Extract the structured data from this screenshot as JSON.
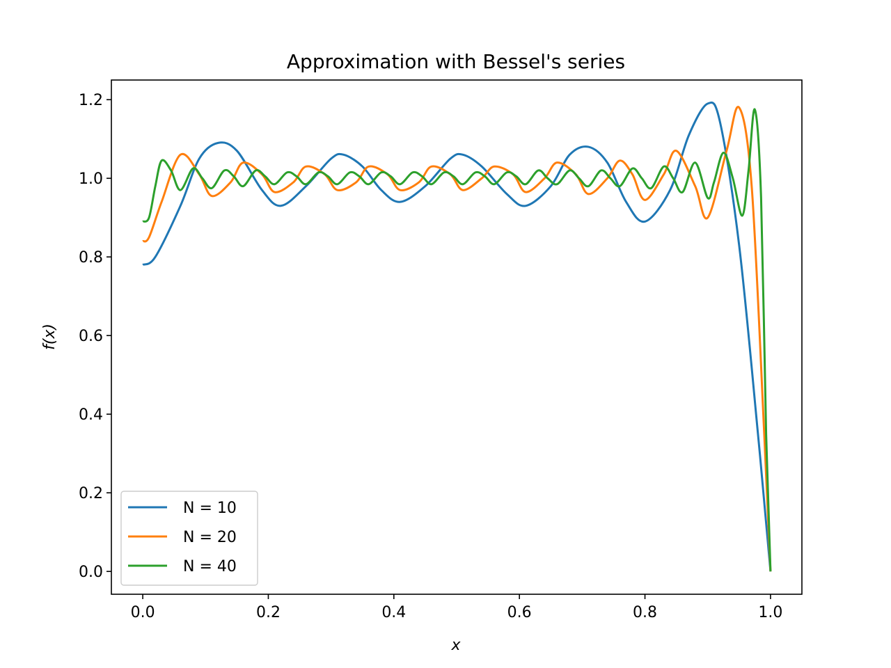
{
  "chart_data": {
    "type": "line",
    "title": "Approximation with Bessel's series",
    "xlabel": "x",
    "ylabel": "f(x)",
    "xlim": [
      -0.05,
      1.05
    ],
    "ylim": [
      -0.058,
      1.25
    ],
    "xticks": [
      0.0,
      0.2,
      0.4,
      0.6,
      0.8,
      1.0
    ],
    "xtick_labels": [
      "0.0",
      "0.2",
      "0.4",
      "0.6",
      "0.8",
      "1.0"
    ],
    "yticks": [
      0.0,
      0.2,
      0.4,
      0.6,
      0.8,
      1.0,
      1.2
    ],
    "ytick_labels": [
      "0.0",
      "0.2",
      "0.4",
      "0.6",
      "0.8",
      "1.0",
      "1.2"
    ],
    "grid": false,
    "legend_position": "lower-left",
    "series": [
      {
        "name": "N = 10",
        "color": "#1f77b4",
        "x": [
          0.0,
          0.02,
          0.06,
          0.09,
          0.12,
          0.15,
          0.19,
          0.22,
          0.26,
          0.3,
          0.32,
          0.35,
          0.38,
          0.41,
          0.45,
          0.49,
          0.51,
          0.54,
          0.58,
          0.61,
          0.65,
          0.68,
          0.71,
          0.74,
          0.77,
          0.8,
          0.84,
          0.87,
          0.9,
          0.92,
          0.95,
          0.98,
          1.0
        ],
        "y": [
          0.78,
          0.8,
          0.93,
          1.05,
          1.09,
          1.07,
          0.97,
          0.93,
          0.98,
          1.05,
          1.06,
          1.03,
          0.97,
          0.94,
          0.98,
          1.05,
          1.06,
          1.03,
          0.96,
          0.93,
          0.98,
          1.06,
          1.08,
          1.04,
          0.94,
          0.89,
          0.97,
          1.11,
          1.19,
          1.14,
          0.83,
          0.35,
          0.0
        ]
      },
      {
        "name": "N = 20",
        "color": "#ff7f0e",
        "x": [
          0.0,
          0.01,
          0.03,
          0.06,
          0.09,
          0.11,
          0.14,
          0.16,
          0.19,
          0.21,
          0.24,
          0.26,
          0.29,
          0.31,
          0.34,
          0.36,
          0.39,
          0.41,
          0.44,
          0.46,
          0.49,
          0.51,
          0.54,
          0.56,
          0.59,
          0.61,
          0.64,
          0.66,
          0.69,
          0.71,
          0.74,
          0.76,
          0.78,
          0.8,
          0.83,
          0.85,
          0.88,
          0.9,
          0.93,
          0.95,
          0.97,
          0.99,
          1.0
        ],
        "y": [
          0.84,
          0.85,
          0.94,
          1.06,
          1.01,
          0.955,
          0.99,
          1.04,
          1.01,
          0.965,
          0.99,
          1.03,
          1.01,
          0.97,
          0.99,
          1.03,
          1.01,
          0.97,
          0.99,
          1.03,
          1.01,
          0.97,
          1.0,
          1.03,
          1.01,
          0.965,
          1.0,
          1.04,
          1.01,
          0.96,
          1.0,
          1.045,
          1.01,
          0.945,
          1.01,
          1.07,
          0.98,
          0.9,
          1.07,
          1.18,
          0.98,
          0.35,
          0.0
        ]
      },
      {
        "name": "N = 40",
        "color": "#2ca02c",
        "x": [
          0.0,
          0.01,
          0.02,
          0.03,
          0.045,
          0.06,
          0.08,
          0.095,
          0.11,
          0.13,
          0.145,
          0.16,
          0.18,
          0.195,
          0.21,
          0.23,
          0.245,
          0.26,
          0.28,
          0.295,
          0.31,
          0.33,
          0.345,
          0.36,
          0.38,
          0.395,
          0.41,
          0.43,
          0.445,
          0.46,
          0.48,
          0.495,
          0.51,
          0.53,
          0.545,
          0.56,
          0.58,
          0.595,
          0.61,
          0.63,
          0.645,
          0.66,
          0.68,
          0.695,
          0.71,
          0.73,
          0.745,
          0.76,
          0.78,
          0.795,
          0.81,
          0.83,
          0.845,
          0.86,
          0.88,
          0.9,
          0.91,
          0.925,
          0.94,
          0.955,
          0.965,
          0.975,
          0.985,
          0.993,
          1.0
        ],
        "y": [
          0.89,
          0.9,
          0.98,
          1.045,
          1.02,
          0.97,
          1.025,
          1.0,
          0.975,
          1.02,
          1.005,
          0.98,
          1.02,
          1.005,
          0.985,
          1.015,
          1.005,
          0.985,
          1.015,
          1.005,
          0.985,
          1.015,
          1.005,
          0.985,
          1.015,
          1.005,
          0.985,
          1.015,
          1.005,
          0.985,
          1.015,
          1.005,
          0.985,
          1.015,
          1.005,
          0.985,
          1.015,
          1.005,
          0.985,
          1.02,
          1.0,
          0.985,
          1.02,
          1.0,
          0.98,
          1.02,
          1.0,
          0.98,
          1.025,
          1.0,
          0.975,
          1.03,
          1.0,
          0.965,
          1.04,
          0.95,
          0.99,
          1.065,
          1.0,
          0.905,
          1.02,
          1.175,
          0.95,
          0.35,
          0.0
        ]
      }
    ]
  }
}
